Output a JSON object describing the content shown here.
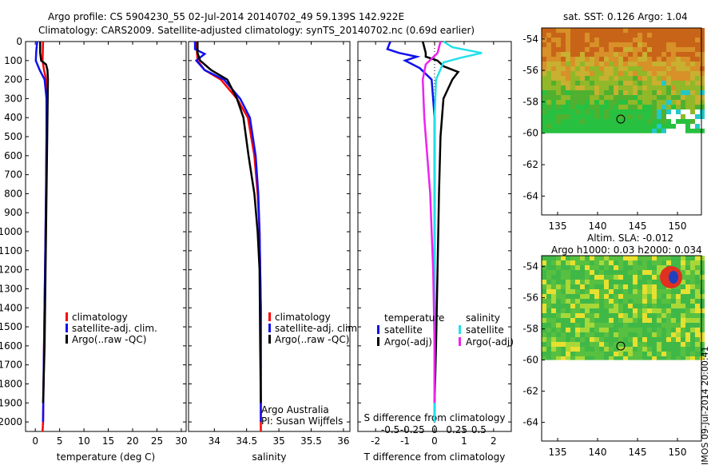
{
  "header": {
    "title_line1": "Argo profile: CS 5904230_55 02-Jul-2014 20140702_49 59.139S 142.922E",
    "title_line2": "Climatology: CARS2009. Satellite-adjusted climatology: synTS_20140702.nc (0.69d earlier)"
  },
  "stamp": "IMOS 09-Jul-2014 20:00:41",
  "colors": {
    "climatology": "#ff0000",
    "satellite": "#1010ee",
    "argo": "#000000",
    "salinity_sat": "#22e0e8",
    "salinity_argo": "#ee22ee"
  },
  "chart_data": [
    {
      "type": "line",
      "panel": "temperature",
      "xlabel": "temperature (deg C)",
      "ylabel": "",
      "xlim": [
        -2,
        31
      ],
      "ylim": [
        2050,
        0
      ],
      "xticks": [
        0,
        5,
        10,
        15,
        20,
        25,
        30
      ],
      "yticks": [
        0,
        100,
        200,
        300,
        400,
        500,
        600,
        700,
        800,
        900,
        1000,
        1100,
        1200,
        1300,
        1400,
        1500,
        1600,
        1700,
        1800,
        1900,
        2000
      ],
      "legend": [
        "climatology",
        "satellite-adj. clim.",
        "Argo(..raw -QC)"
      ],
      "legend_position": "lower-center",
      "series": [
        {
          "name": "climatology",
          "points": [
            [
              1.6,
              0
            ],
            [
              1.55,
              50
            ],
            [
              1.5,
              100
            ],
            [
              1.8,
              150
            ],
            [
              2.2,
              200
            ],
            [
              2.3,
              300
            ],
            [
              2.3,
              500
            ],
            [
              2.2,
              800
            ],
            [
              2.0,
              1200
            ],
            [
              1.8,
              1600
            ],
            [
              1.6,
              2000
            ],
            [
              1.5,
              2050
            ]
          ]
        },
        {
          "name": "satellite-adj. clim.",
          "points": [
            [
              0.4,
              0
            ],
            [
              0.2,
              50
            ],
            [
              0.1,
              100
            ],
            [
              0.9,
              150
            ],
            [
              1.9,
              200
            ],
            [
              2.3,
              300
            ],
            [
              2.3,
              500
            ],
            [
              2.2,
              800
            ],
            [
              2.0,
              1200
            ],
            [
              1.8,
              1600
            ],
            [
              1.6,
              2000
            ]
          ]
        },
        {
          "name": "Argo(..raw -QC)",
          "points": [
            [
              1.0,
              0
            ],
            [
              1.0,
              60
            ],
            [
              1.2,
              100
            ],
            [
              2.2,
              120
            ],
            [
              2.5,
              150
            ],
            [
              2.6,
              200
            ],
            [
              2.5,
              400
            ],
            [
              2.3,
              800
            ],
            [
              2.1,
              1200
            ],
            [
              1.9,
              1600
            ],
            [
              1.6,
              1900
            ]
          ]
        }
      ]
    },
    {
      "type": "line",
      "panel": "salinity",
      "xlabel": "salinity",
      "xlim": [
        33.6,
        36.1
      ],
      "ylim": [
        2050,
        0
      ],
      "xticks": [
        34,
        34.5,
        35,
        35.5,
        36
      ],
      "legend": [
        "climatology",
        "satellite-adj. clim.",
        "Argo(..raw -QC)"
      ],
      "legend_position": "lower-right",
      "annotation_line1": "Argo Australia",
      "annotation_line2": "PI: Susan Wijffels",
      "series": [
        {
          "name": "climatology",
          "points": [
            [
              33.72,
              0
            ],
            [
              33.73,
              50
            ],
            [
              33.74,
              100
            ],
            [
              33.85,
              150
            ],
            [
              34.1,
              200
            ],
            [
              34.35,
              300
            ],
            [
              34.52,
              400
            ],
            [
              34.62,
              600
            ],
            [
              34.67,
              800
            ],
            [
              34.7,
              1000
            ],
            [
              34.72,
              1400
            ],
            [
              34.72,
              2000
            ],
            [
              34.72,
              2050
            ]
          ]
        },
        {
          "name": "satellite-adj. clim.",
          "points": [
            [
              33.7,
              0
            ],
            [
              33.7,
              40
            ],
            [
              33.85,
              65
            ],
            [
              33.72,
              100
            ],
            [
              33.85,
              150
            ],
            [
              34.15,
              200
            ],
            [
              34.4,
              300
            ],
            [
              34.55,
              400
            ],
            [
              34.64,
              600
            ],
            [
              34.68,
              800
            ],
            [
              34.7,
              1000
            ],
            [
              34.72,
              1400
            ],
            [
              34.72,
              2000
            ]
          ]
        },
        {
          "name": "Argo(..raw -QC)",
          "points": [
            [
              33.74,
              0
            ],
            [
              33.74,
              60
            ],
            [
              33.78,
              100
            ],
            [
              33.95,
              150
            ],
            [
              34.2,
              200
            ],
            [
              34.35,
              300
            ],
            [
              34.45,
              400
            ],
            [
              34.53,
              600
            ],
            [
              34.62,
              800
            ],
            [
              34.67,
              1000
            ],
            [
              34.7,
              1200
            ],
            [
              34.71,
              1600
            ],
            [
              34.72,
              1900
            ]
          ]
        }
      ]
    },
    {
      "type": "line",
      "panel": "difference",
      "xlabel": "T difference from climatology",
      "top_label": "S difference from climatology",
      "xlim": [
        -2.6,
        2.6
      ],
      "ylim": [
        2050,
        0
      ],
      "xticks": [
        -2,
        -1,
        0,
        1,
        2
      ],
      "top_ticks": [
        "-0.5",
        "-0.25",
        "0",
        "0.25",
        "0.5"
      ],
      "legend_temperature": {
        "title": "temperature",
        "items": [
          "satellite",
          "Argo(-adj)"
        ]
      },
      "legend_salinity": {
        "title": "salinity",
        "items": [
          "satellite",
          "Argo(-adj)"
        ]
      },
      "series": [
        {
          "name": "temperature satellite",
          "points": [
            [
              -1.5,
              0
            ],
            [
              -1.6,
              40
            ],
            [
              -1.2,
              60
            ],
            [
              -0.6,
              80
            ],
            [
              -1.0,
              100
            ],
            [
              -0.5,
              140
            ],
            [
              -0.1,
              200
            ],
            [
              0,
              400
            ],
            [
              0,
              2000
            ]
          ]
        },
        {
          "name": "temperature Argo(-adj)",
          "points": [
            [
              -0.4,
              0
            ],
            [
              -0.3,
              60
            ],
            [
              -0.3,
              80
            ],
            [
              0.1,
              100
            ],
            [
              0.3,
              130
            ],
            [
              0.8,
              160
            ],
            [
              0.6,
              200
            ],
            [
              0.3,
              300
            ],
            [
              0.2,
              500
            ],
            [
              0.15,
              800
            ],
            [
              0.1,
              1200
            ],
            [
              0.05,
              1600
            ],
            [
              0,
              1900
            ]
          ]
        },
        {
          "name": "salinity satellite",
          "points": [
            [
              0.3,
              0
            ],
            [
              0.6,
              30
            ],
            [
              1.6,
              60
            ],
            [
              0.9,
              85
            ],
            [
              0.3,
              110
            ],
            [
              0.05,
              200
            ],
            [
              0,
              400
            ],
            [
              0,
              2000
            ]
          ]
        },
        {
          "name": "salinity Argo(-adj)",
          "points": [
            [
              0.2,
              0
            ],
            [
              0.1,
              60
            ],
            [
              -0.3,
              120
            ],
            [
              -0.4,
              200
            ],
            [
              -0.35,
              400
            ],
            [
              -0.25,
              600
            ],
            [
              -0.15,
              800
            ],
            [
              -0.1,
              1000
            ],
            [
              -0.05,
              1200
            ],
            [
              0,
              1600
            ],
            [
              0,
              1900
            ]
          ]
        }
      ]
    }
  ],
  "maps": [
    {
      "title": "sat. SST: 0.126 Argo: 1.04",
      "xticks": [
        "135",
        "140",
        "145",
        "150"
      ],
      "yticks": [
        "-54",
        "-56",
        "-58",
        "-60",
        "-62",
        "-64"
      ],
      "marker": {
        "lon": 142.9,
        "lat": -59.1
      }
    },
    {
      "title_line1": "Altim. SLA: -0.012",
      "title_line2": "Argo h1000: 0.03 h2000: 0.034",
      "xticks": [
        "135",
        "140",
        "145",
        "150"
      ],
      "yticks": [
        "-54",
        "-56",
        "-58",
        "-60",
        "-62",
        "-64"
      ],
      "marker": {
        "lon": 142.9,
        "lat": -59.1
      }
    }
  ]
}
